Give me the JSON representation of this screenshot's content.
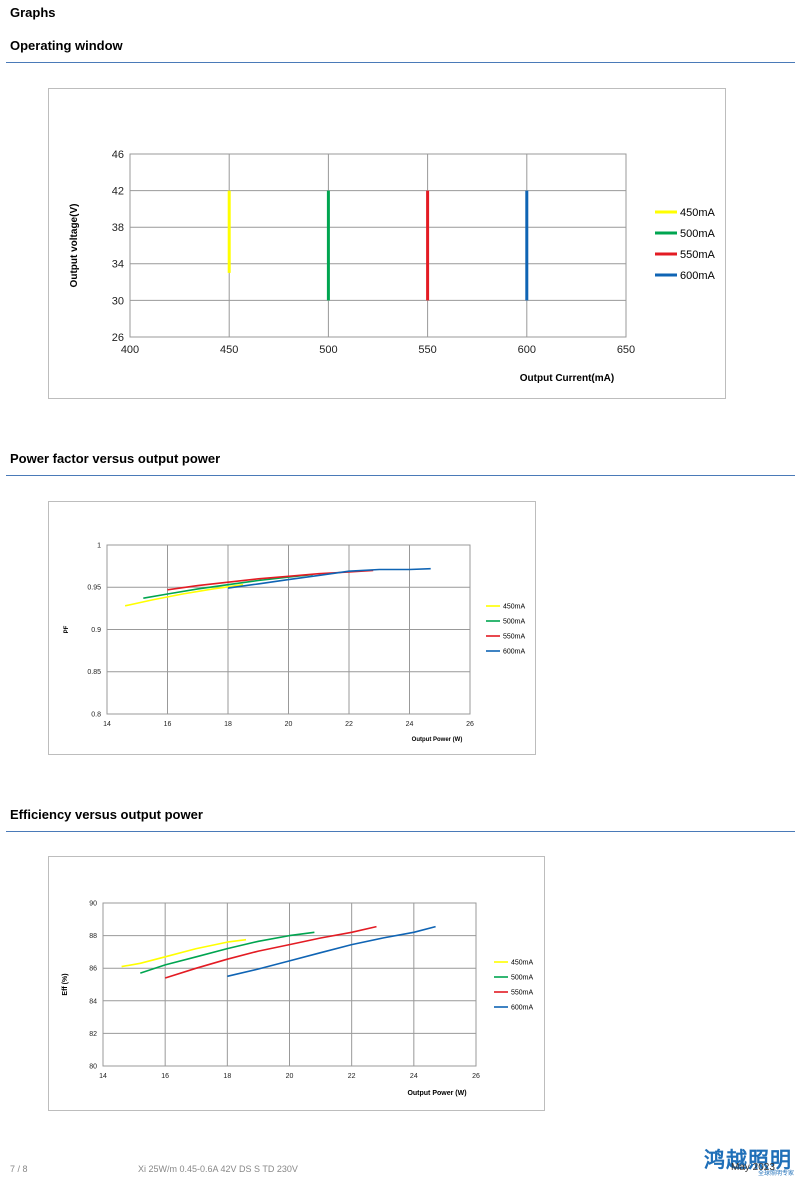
{
  "page_title": "Graphs",
  "sections": [
    {
      "title": "Operating window"
    },
    {
      "title": "Power factor versus output power"
    },
    {
      "title": "Efficiency versus output power"
    }
  ],
  "footer": {
    "page": "7 / 8",
    "product": "Xi 25W/m 0.45-0.6A 42V DS S TD 230V",
    "date": "May 2023",
    "logo_text": "鸿越照明",
    "logo_sub": "全球照明专家"
  },
  "colors": {
    "450mA": "#ffff00",
    "500mA": "#00a550",
    "550mA": "#e31b23",
    "600mA": "#0f64b4",
    "rule": "#4a7ab8"
  },
  "chart_data": [
    {
      "type": "line",
      "title": "Operating window",
      "xlabel": "Output Current(mA)",
      "ylabel": "Output voltage(V)",
      "xlim": [
        400,
        650
      ],
      "ylim": [
        26,
        46
      ],
      "xticks": [
        400,
        450,
        500,
        550,
        600,
        650
      ],
      "yticks": [
        26,
        30,
        34,
        38,
        42,
        46
      ],
      "grid": true,
      "legend_position": "right",
      "series": [
        {
          "name": "450mA",
          "color": "#ffff00",
          "x": [
            450,
            450
          ],
          "y": [
            33,
            42
          ]
        },
        {
          "name": "500mA",
          "color": "#00a550",
          "x": [
            500,
            500
          ],
          "y": [
            30,
            42
          ]
        },
        {
          "name": "550mA",
          "color": "#e31b23",
          "x": [
            550,
            550
          ],
          "y": [
            30,
            42
          ]
        },
        {
          "name": "600mA",
          "color": "#0f64b4",
          "x": [
            600,
            600
          ],
          "y": [
            30,
            42
          ]
        }
      ]
    },
    {
      "type": "line",
      "title": "Power factor versus output power",
      "xlabel": "Output Power (W)",
      "ylabel": "PF",
      "xlim": [
        14,
        26
      ],
      "ylim": [
        0.8,
        1
      ],
      "xticks": [
        14,
        16,
        18,
        20,
        22,
        24,
        26
      ],
      "yticks": [
        0.8,
        0.85,
        0.9,
        0.95,
        1
      ],
      "grid": true,
      "legend_position": "right",
      "series": [
        {
          "name": "450mA",
          "color": "#ffff00",
          "x": [
            14.6,
            15.5,
            16.5,
            17.5,
            18.5
          ],
          "y": [
            0.928,
            0.935,
            0.942,
            0.948,
            0.953
          ]
        },
        {
          "name": "500mA",
          "color": "#00a550",
          "x": [
            15.2,
            16,
            17,
            18,
            19,
            20,
            20.8
          ],
          "y": [
            0.937,
            0.942,
            0.948,
            0.953,
            0.958,
            0.962,
            0.965
          ]
        },
        {
          "name": "550mA",
          "color": "#e31b23",
          "x": [
            16,
            17,
            18,
            19,
            20,
            21,
            22,
            22.8
          ],
          "y": [
            0.947,
            0.952,
            0.956,
            0.96,
            0.963,
            0.966,
            0.968,
            0.97
          ]
        },
        {
          "name": "600mA",
          "color": "#0f64b4",
          "x": [
            18,
            19,
            20,
            21,
            22,
            23,
            24,
            24.7
          ],
          "y": [
            0.949,
            0.954,
            0.959,
            0.964,
            0.969,
            0.971,
            0.971,
            0.972
          ]
        }
      ]
    },
    {
      "type": "line",
      "title": "Efficiency versus output power",
      "xlabel": "Output Power (W)",
      "ylabel": "Eff  (%)",
      "xlim": [
        14,
        26
      ],
      "ylim": [
        80,
        90
      ],
      "xticks": [
        14,
        16,
        18,
        20,
        22,
        24,
        26
      ],
      "yticks": [
        80,
        82,
        84,
        86,
        88,
        90
      ],
      "grid": true,
      "legend_position": "right",
      "series": [
        {
          "name": "450mA",
          "color": "#ffff00",
          "x": [
            14.6,
            15.2,
            16,
            17,
            18,
            18.6
          ],
          "y": [
            86.1,
            86.3,
            86.7,
            87.2,
            87.6,
            87.75
          ]
        },
        {
          "name": "500mA",
          "color": "#00a550",
          "x": [
            15.2,
            16,
            17,
            18,
            19,
            20,
            20.8
          ],
          "y": [
            85.7,
            86.2,
            86.7,
            87.2,
            87.65,
            88.0,
            88.2
          ]
        },
        {
          "name": "550mA",
          "color": "#e31b23",
          "x": [
            16,
            17,
            18,
            19,
            20,
            21,
            22,
            22.8
          ],
          "y": [
            85.4,
            86.0,
            86.55,
            87.05,
            87.45,
            87.85,
            88.2,
            88.55
          ]
        },
        {
          "name": "600mA",
          "color": "#0f64b4",
          "x": [
            18,
            19,
            20,
            21,
            22,
            23,
            24,
            24.7
          ],
          "y": [
            85.5,
            85.95,
            86.45,
            86.95,
            87.45,
            87.85,
            88.2,
            88.55
          ]
        }
      ]
    }
  ]
}
